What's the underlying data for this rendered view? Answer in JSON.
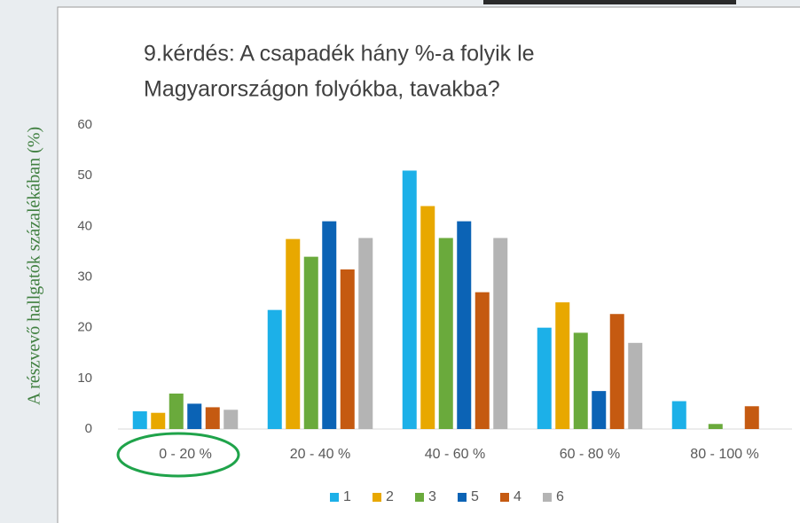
{
  "chart_data": {
    "type": "bar",
    "title": [
      "9.kérdés: A csapadék hány %-a folyik le",
      "Magyarországon folyókba, tavakba?"
    ],
    "y_label": "A részvevő hallgatók százalékában (%)",
    "categories": [
      "0 - 20 %",
      "20 - 40 %",
      "40 - 60 %",
      "60 - 80 %",
      "80 - 100 %"
    ],
    "series": [
      {
        "name": "1",
        "color": "#1cb0e8",
        "values": [
          3.5,
          23.5,
          51,
          20,
          5.5
        ]
      },
      {
        "name": "2",
        "color": "#e8a800",
        "values": [
          3.2,
          37.5,
          44,
          25,
          0
        ]
      },
      {
        "name": "3",
        "color": "#6aaa3c",
        "values": [
          7,
          34,
          37.7,
          19,
          1
        ]
      },
      {
        "name": "5",
        "color": "#0b63b5",
        "values": [
          5,
          41,
          41,
          7.5,
          0
        ]
      },
      {
        "name": "4",
        "color": "#c55a11",
        "values": [
          4.3,
          31.5,
          27,
          22.7,
          4.5
        ]
      },
      {
        "name": "6",
        "color": "#b4b4b4",
        "values": [
          3.8,
          37.7,
          37.7,
          17,
          0
        ]
      }
    ],
    "ylim": [
      0,
      60
    ],
    "yticks": [
      0,
      10,
      20,
      30,
      40,
      50,
      60
    ],
    "grid": false,
    "legend": "bottom"
  }
}
